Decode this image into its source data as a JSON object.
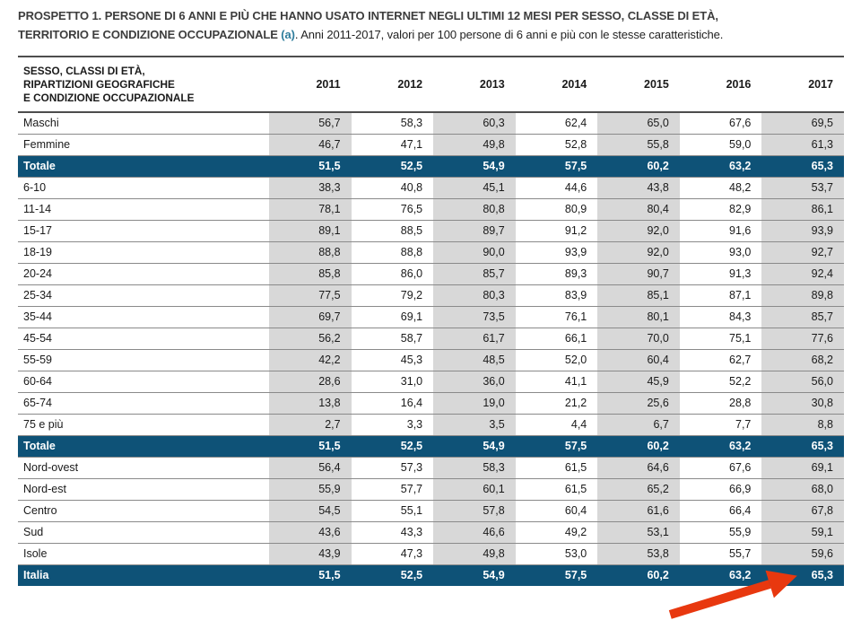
{
  "title": {
    "line1": "PROSPETTO 1. PERSONE DI 6 ANNI E PIÙ CHE HANNO USATO INTERNET NEGLI ULTIMI 12 MESI PER SESSO, CLASSE DI ETÀ,",
    "line2_bold": "TERRITORIO E CONDIZIONE OCCUPAZIONALE ",
    "note_marker": "(a)",
    "line2_rest": ". Anni 2011-2017, valori per 100 persone di 6 anni e più con le stesse caratteristiche."
  },
  "colors": {
    "highlight_row_bg": "#0e5277",
    "shade_col_bg": "#d8d8d8",
    "arrow_color": "#e8380f",
    "note_color": "#2e7d9c"
  },
  "annotations": {
    "red_arrow_target": "65,3"
  },
  "chart_data": {
    "type": "table",
    "stub_header": "SESSO, CLASSI DI ETÀ,\nRIPARTIZIONI GEOGRAFICHE\nE CONDIZIONE OCCUPAZIONALE",
    "years": [
      "2011",
      "2012",
      "2013",
      "2014",
      "2015",
      "2016",
      "2017"
    ],
    "shaded_year_indexes": [
      0,
      2,
      4,
      6
    ],
    "rows": [
      {
        "label": "Maschi",
        "highlight": false,
        "values": [
          "56,7",
          "58,3",
          "60,3",
          "62,4",
          "65,0",
          "67,6",
          "69,5"
        ]
      },
      {
        "label": "Femmine",
        "highlight": false,
        "values": [
          "46,7",
          "47,1",
          "49,8",
          "52,8",
          "55,8",
          "59,0",
          "61,3"
        ]
      },
      {
        "label": "Totale",
        "highlight": true,
        "values": [
          "51,5",
          "52,5",
          "54,9",
          "57,5",
          "60,2",
          "63,2",
          "65,3"
        ]
      },
      {
        "label": "6-10",
        "highlight": false,
        "values": [
          "38,3",
          "40,8",
          "45,1",
          "44,6",
          "43,8",
          "48,2",
          "53,7"
        ]
      },
      {
        "label": "11-14",
        "highlight": false,
        "values": [
          "78,1",
          "76,5",
          "80,8",
          "80,9",
          "80,4",
          "82,9",
          "86,1"
        ]
      },
      {
        "label": "15-17",
        "highlight": false,
        "values": [
          "89,1",
          "88,5",
          "89,7",
          "91,2",
          "92,0",
          "91,6",
          "93,9"
        ]
      },
      {
        "label": "18-19",
        "highlight": false,
        "values": [
          "88,8",
          "88,8",
          "90,0",
          "93,9",
          "92,0",
          "93,0",
          "92,7"
        ]
      },
      {
        "label": "20-24",
        "highlight": false,
        "values": [
          "85,8",
          "86,0",
          "85,7",
          "89,3",
          "90,7",
          "91,3",
          "92,4"
        ]
      },
      {
        "label": "25-34",
        "highlight": false,
        "values": [
          "77,5",
          "79,2",
          "80,3",
          "83,9",
          "85,1",
          "87,1",
          "89,8"
        ]
      },
      {
        "label": "35-44",
        "highlight": false,
        "values": [
          "69,7",
          "69,1",
          "73,5",
          "76,1",
          "80,1",
          "84,3",
          "85,7"
        ]
      },
      {
        "label": "45-54",
        "highlight": false,
        "values": [
          "56,2",
          "58,7",
          "61,7",
          "66,1",
          "70,0",
          "75,1",
          "77,6"
        ]
      },
      {
        "label": "55-59",
        "highlight": false,
        "values": [
          "42,2",
          "45,3",
          "48,5",
          "52,0",
          "60,4",
          "62,7",
          "68,2"
        ]
      },
      {
        "label": "60-64",
        "highlight": false,
        "values": [
          "28,6",
          "31,0",
          "36,0",
          "41,1",
          "45,9",
          "52,2",
          "56,0"
        ]
      },
      {
        "label": "65-74",
        "highlight": false,
        "values": [
          "13,8",
          "16,4",
          "19,0",
          "21,2",
          "25,6",
          "28,8",
          "30,8"
        ]
      },
      {
        "label": "75 e più",
        "highlight": false,
        "values": [
          "2,7",
          "3,3",
          "3,5",
          "4,4",
          "6,7",
          "7,7",
          "8,8"
        ]
      },
      {
        "label": "Totale",
        "highlight": true,
        "values": [
          "51,5",
          "52,5",
          "54,9",
          "57,5",
          "60,2",
          "63,2",
          "65,3"
        ]
      },
      {
        "label": "Nord-ovest",
        "highlight": false,
        "values": [
          "56,4",
          "57,3",
          "58,3",
          "61,5",
          "64,6",
          "67,6",
          "69,1"
        ]
      },
      {
        "label": "Nord-est",
        "highlight": false,
        "values": [
          "55,9",
          "57,7",
          "60,1",
          "61,5",
          "65,2",
          "66,9",
          "68,0"
        ]
      },
      {
        "label": "Centro",
        "highlight": false,
        "values": [
          "54,5",
          "55,1",
          "57,8",
          "60,4",
          "61,6",
          "66,4",
          "67,8"
        ]
      },
      {
        "label": "Sud",
        "highlight": false,
        "values": [
          "43,6",
          "43,3",
          "46,6",
          "49,2",
          "53,1",
          "55,9",
          "59,1"
        ]
      },
      {
        "label": "Isole",
        "highlight": false,
        "values": [
          "43,9",
          "47,3",
          "49,8",
          "53,0",
          "53,8",
          "55,7",
          "59,6"
        ]
      },
      {
        "label": "Italia",
        "highlight": true,
        "values": [
          "51,5",
          "52,5",
          "54,9",
          "57,5",
          "60,2",
          "63,2",
          "65,3"
        ]
      }
    ]
  }
}
